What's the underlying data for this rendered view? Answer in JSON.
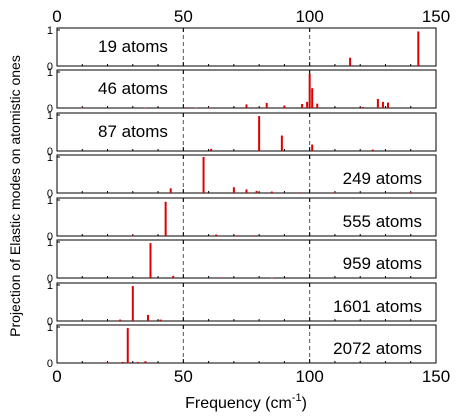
{
  "chart_data": {
    "type": "bar",
    "xlabel": "Frequency (cm",
    "xlabel_sup": "-1",
    "xlabel_close": ")",
    "ylabel": "Projection of Elastic modes on atomistic ones",
    "xlim": [
      0,
      150
    ],
    "ylim": [
      0,
      1
    ],
    "xticks": [
      0,
      50,
      100,
      150
    ],
    "yticks": [
      0,
      1
    ],
    "grid": "vertical dashed lines at x = 50 and x = 100",
    "bar_color": "#dd0000",
    "panels": [
      {
        "label": "19 atoms",
        "label_pos": "top-left",
        "bars": [
          [
            116,
            0.23
          ],
          [
            143,
            0.96
          ]
        ]
      },
      {
        "label": "46 atoms",
        "label_pos": "top-left",
        "bars": [
          [
            10,
            0.01
          ],
          [
            35,
            0.015
          ],
          [
            51,
            0.02
          ],
          [
            55,
            0.015
          ],
          [
            60,
            0.015
          ],
          [
            75,
            0.1
          ],
          [
            83,
            0.14
          ],
          [
            90,
            0.07
          ],
          [
            97,
            0.11
          ],
          [
            99,
            0.17
          ],
          [
            100,
            0.95
          ],
          [
            101,
            0.55
          ],
          [
            103,
            0.12
          ],
          [
            121,
            0.03
          ],
          [
            127,
            0.25
          ],
          [
            129,
            0.17
          ],
          [
            131,
            0.15
          ]
        ]
      },
      {
        "label": "87 atoms",
        "label_pos": "top-left",
        "bars": [
          [
            61,
            0.06
          ],
          [
            80,
            0.97
          ],
          [
            89,
            0.43
          ],
          [
            101,
            0.18
          ],
          [
            125,
            0.04
          ]
        ]
      },
      {
        "label": "249 atoms",
        "label_pos": "bottom-right",
        "bars": [
          [
            45,
            0.13
          ],
          [
            58,
            1.0
          ],
          [
            70,
            0.16
          ],
          [
            75,
            0.1
          ],
          [
            79,
            0.06
          ],
          [
            85,
            0.04
          ],
          [
            96,
            0.02
          ],
          [
            110,
            0.02
          ],
          [
            140,
            0.02
          ]
        ]
      },
      {
        "label": "555 atoms",
        "label_pos": "bottom-right",
        "bars": [
          [
            30,
            0.02
          ],
          [
            43,
            0.95
          ],
          [
            63,
            0.04
          ],
          [
            72,
            0.02
          ],
          [
            78,
            0.02
          ]
        ]
      },
      {
        "label": "959 atoms",
        "label_pos": "bottom-right",
        "bars": [
          [
            37,
            0.97
          ],
          [
            46,
            0.06
          ],
          [
            65,
            0.02
          ],
          [
            85,
            0.01
          ]
        ]
      },
      {
        "label": "1601 atoms",
        "label_pos": "bottom-right",
        "bars": [
          [
            25,
            0.04
          ],
          [
            30,
            0.97
          ],
          [
            36,
            0.17
          ],
          [
            41,
            0.04
          ]
        ]
      },
      {
        "label": "2072 atoms",
        "label_pos": "bottom-right",
        "bars": [
          [
            20,
            0.02
          ],
          [
            26,
            0.03
          ],
          [
            28,
            0.97
          ],
          [
            32,
            0.03
          ],
          [
            35,
            0.05
          ]
        ]
      }
    ]
  }
}
